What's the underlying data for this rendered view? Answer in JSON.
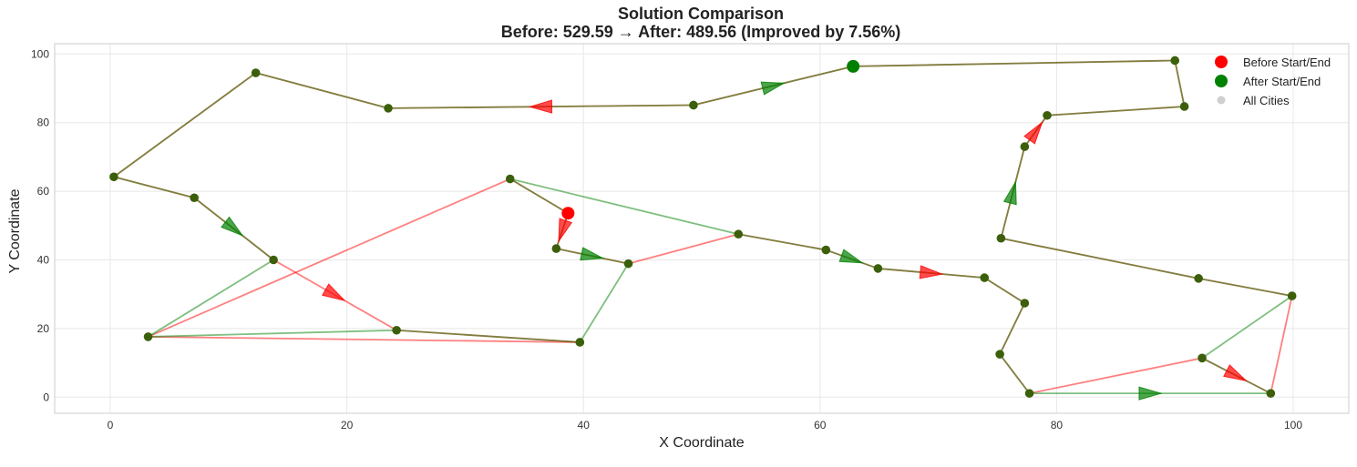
{
  "chart_data": {
    "type": "scatter",
    "title_line1": "Solution Comparison",
    "title_line2": "Before: 529.59 → After: 489.56 (Improved by 7.56%)",
    "xlabel": "X Coordinate",
    "ylabel": "Y Coordinate",
    "xlim": [
      -4.7,
      104.7
    ],
    "ylim": [
      -4.7,
      103
    ],
    "xticks": [
      0,
      20,
      40,
      60,
      80,
      100
    ],
    "yticks": [
      0,
      20,
      40,
      60,
      80,
      100
    ],
    "grid": true,
    "legend_position": "top-right",
    "colors": {
      "before": "#ff0000",
      "after": "#008000",
      "city": "#3b5f0b",
      "shared_line": "#807840",
      "grid": "#e8e8e8",
      "frame": "#cccccc"
    },
    "cities": [
      [
        0.3,
        64.2
      ],
      [
        7.1,
        58.1
      ],
      [
        12.3,
        94.5
      ],
      [
        13.8,
        40.0
      ],
      [
        3.2,
        17.6
      ],
      [
        24.2,
        19.5
      ],
      [
        23.5,
        84.2
      ],
      [
        39.7,
        16.0
      ],
      [
        43.8,
        38.9
      ],
      [
        37.7,
        43.3
      ],
      [
        33.8,
        63.6
      ],
      [
        49.3,
        85.1
      ],
      [
        62.8,
        96.4
      ],
      [
        90.0,
        98.1
      ],
      [
        90.8,
        84.7
      ],
      [
        79.2,
        82.1
      ],
      [
        77.3,
        73.0
      ],
      [
        75.3,
        46.3
      ],
      [
        92.0,
        34.6
      ],
      [
        99.9,
        29.5
      ],
      [
        92.3,
        11.4
      ],
      [
        98.1,
        1.1
      ],
      [
        77.7,
        1.1
      ],
      [
        75.2,
        12.5
      ],
      [
        77.3,
        27.4
      ],
      [
        73.9,
        34.8
      ],
      [
        64.9,
        37.5
      ],
      [
        60.5,
        42.9
      ],
      [
        53.1,
        47.5
      ]
    ],
    "before_start": [
      38.7,
      53.6
    ],
    "after_start": [
      62.8,
      96.4
    ],
    "before_route": [
      [
        38.7,
        53.6
      ],
      [
        37.7,
        43.3
      ],
      [
        43.8,
        38.9
      ],
      [
        53.1,
        47.5
      ],
      [
        60.5,
        42.9
      ],
      [
        64.9,
        37.5
      ],
      [
        73.9,
        34.8
      ],
      [
        77.3,
        27.4
      ],
      [
        75.2,
        12.5
      ],
      [
        77.7,
        1.1
      ],
      [
        92.3,
        11.4
      ],
      [
        98.1,
        1.1
      ],
      [
        99.9,
        29.5
      ],
      [
        92.0,
        34.6
      ],
      [
        75.3,
        46.3
      ],
      [
        77.3,
        73.0
      ],
      [
        79.2,
        82.1
      ],
      [
        90.8,
        84.7
      ],
      [
        90.0,
        98.1
      ],
      [
        62.8,
        96.4
      ],
      [
        49.3,
        85.1
      ],
      [
        23.5,
        84.2
      ],
      [
        12.3,
        94.5
      ],
      [
        0.3,
        64.2
      ],
      [
        7.1,
        58.1
      ],
      [
        13.8,
        40.0
      ],
      [
        24.2,
        19.5
      ],
      [
        39.7,
        16.0
      ],
      [
        3.2,
        17.6
      ],
      [
        33.8,
        63.6
      ],
      [
        38.7,
        53.6
      ]
    ],
    "after_route": [
      [
        62.8,
        96.4
      ],
      [
        90.0,
        98.1
      ],
      [
        90.8,
        84.7
      ],
      [
        79.2,
        82.1
      ],
      [
        77.3,
        73.0
      ],
      [
        75.3,
        46.3
      ],
      [
        92.0,
        34.6
      ],
      [
        99.9,
        29.5
      ],
      [
        92.3,
        11.4
      ],
      [
        98.1,
        1.1
      ],
      [
        77.7,
        1.1
      ],
      [
        75.2,
        12.5
      ],
      [
        77.3,
        27.4
      ],
      [
        73.9,
        34.8
      ],
      [
        64.9,
        37.5
      ],
      [
        60.5,
        42.9
      ],
      [
        53.1,
        47.5
      ],
      [
        33.8,
        63.6
      ],
      [
        38.7,
        53.6
      ],
      [
        37.7,
        43.3
      ],
      [
        43.8,
        38.9
      ],
      [
        39.7,
        16.0
      ],
      [
        24.2,
        19.5
      ],
      [
        3.2,
        17.6
      ],
      [
        13.8,
        40.0
      ],
      [
        7.1,
        58.1
      ],
      [
        0.3,
        64.2
      ],
      [
        12.3,
        94.5
      ],
      [
        23.5,
        84.2
      ],
      [
        49.3,
        85.1
      ],
      [
        62.8,
        96.4
      ]
    ],
    "before_arrows": [
      [
        [
          38.7,
          53.6
        ],
        [
          37.7,
          43.3
        ]
      ],
      [
        [
          64.9,
          37.5
        ],
        [
          73.9,
          34.8
        ]
      ],
      [
        [
          92.3,
          11.4
        ],
        [
          98.1,
          1.1
        ]
      ],
      [
        [
          77.3,
          73.0
        ],
        [
          79.2,
          82.1
        ]
      ],
      [
        [
          49.3,
          85.1
        ],
        [
          23.5,
          84.2
        ]
      ],
      [
        [
          13.8,
          40.0
        ],
        [
          24.2,
          19.5
        ]
      ]
    ],
    "after_arrows": [
      [
        [
          49.3,
          85.1
        ],
        [
          62.8,
          96.4
        ]
      ],
      [
        [
          75.3,
          46.3
        ],
        [
          77.3,
          73.0
        ]
      ],
      [
        [
          60.5,
          42.9
        ],
        [
          64.9,
          37.5
        ]
      ],
      [
        [
          37.7,
          43.3
        ],
        [
          43.8,
          38.9
        ]
      ],
      [
        [
          7.1,
          58.1
        ],
        [
          13.8,
          40.0
        ]
      ],
      [
        [
          77.7,
          1.1
        ],
        [
          98.1,
          1.1
        ]
      ]
    ],
    "legend": [
      {
        "label": "Before Start/End",
        "color": "#ff0000",
        "kind": "before"
      },
      {
        "label": "After Start/End",
        "color": "#008000",
        "kind": "after"
      },
      {
        "label": "All Cities",
        "color": "#cfcfcf",
        "kind": "city"
      }
    ]
  }
}
